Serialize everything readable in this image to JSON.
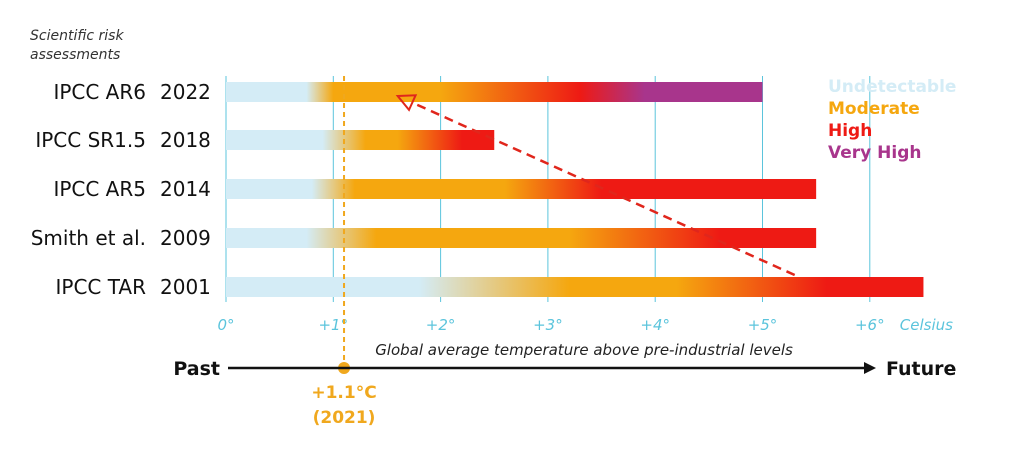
{
  "chart_data": {
    "type": "bar",
    "ylabel": "Scientific risk\nassessments",
    "xlabel": "Global average temperature above pre-industrial levels",
    "x_unit": "Celsius",
    "x_ticks": [
      "0°",
      "+1°",
      "+2°",
      "+3°",
      "+4°",
      "+5°",
      "+6°"
    ],
    "xlim": [
      0,
      6.5
    ],
    "categories": [
      {
        "name": "IPCC AR6",
        "year": "2022",
        "end": 5.0,
        "stops": [
          [
            0,
            "undetectable"
          ],
          [
            0.75,
            "undetectable"
          ],
          [
            1.0,
            "moderate"
          ],
          [
            2.0,
            "moderate"
          ],
          [
            3.3,
            "high"
          ],
          [
            3.9,
            "very_high"
          ],
          [
            5.0,
            "very_high"
          ]
        ]
      },
      {
        "name": "IPCC SR1.5",
        "year": "2018",
        "end": 2.5,
        "stops": [
          [
            0,
            "undetectable"
          ],
          [
            0.9,
            "undetectable"
          ],
          [
            1.3,
            "moderate"
          ],
          [
            1.6,
            "moderate"
          ],
          [
            2.2,
            "high"
          ],
          [
            2.5,
            "high"
          ]
        ]
      },
      {
        "name": "IPCC AR5",
        "year": "2014",
        "end": 5.5,
        "stops": [
          [
            0,
            "undetectable"
          ],
          [
            0.8,
            "undetectable"
          ],
          [
            1.2,
            "moderate"
          ],
          [
            2.6,
            "moderate"
          ],
          [
            3.5,
            "high"
          ],
          [
            5.5,
            "high"
          ]
        ]
      },
      {
        "name": "Smith et al.",
        "year": "2009",
        "end": 5.5,
        "stops": [
          [
            0,
            "undetectable"
          ],
          [
            0.75,
            "undetectable"
          ],
          [
            1.4,
            "moderate"
          ],
          [
            3.2,
            "moderate"
          ],
          [
            4.6,
            "high"
          ],
          [
            5.5,
            "high"
          ]
        ]
      },
      {
        "name": "IPCC TAR",
        "year": "2001",
        "end": 6.5,
        "stops": [
          [
            0,
            "undetectable"
          ],
          [
            1.8,
            "undetectable"
          ],
          [
            3.2,
            "moderate"
          ],
          [
            4.2,
            "moderate"
          ],
          [
            5.6,
            "high"
          ],
          [
            6.5,
            "high"
          ]
        ]
      }
    ],
    "legend": [
      {
        "key": "undetectable",
        "label": "Undetectable",
        "color": "#d4ecf6"
      },
      {
        "key": "moderate",
        "label": "Moderate",
        "color": "#f5a70f"
      },
      {
        "key": "high",
        "label": "High",
        "color": "#ee1a14"
      },
      {
        "key": "very_high",
        "label": "Very High",
        "color": "#a8358c"
      }
    ],
    "legend_position": "top-right",
    "current_marker": {
      "value": 1.1,
      "label": "+1.1°C",
      "sublabel": "(2021)",
      "color": "#f0a81e"
    },
    "trend_arrow": {
      "from": {
        "category": "IPCC TAR",
        "x": 5.3
      },
      "to": {
        "category": "IPCC AR6",
        "x": 1.6
      },
      "color": "#e0261c"
    },
    "timeline": {
      "left": "Past",
      "right": "Future"
    },
    "grid": true,
    "grid_color": "#5bc4dc"
  }
}
